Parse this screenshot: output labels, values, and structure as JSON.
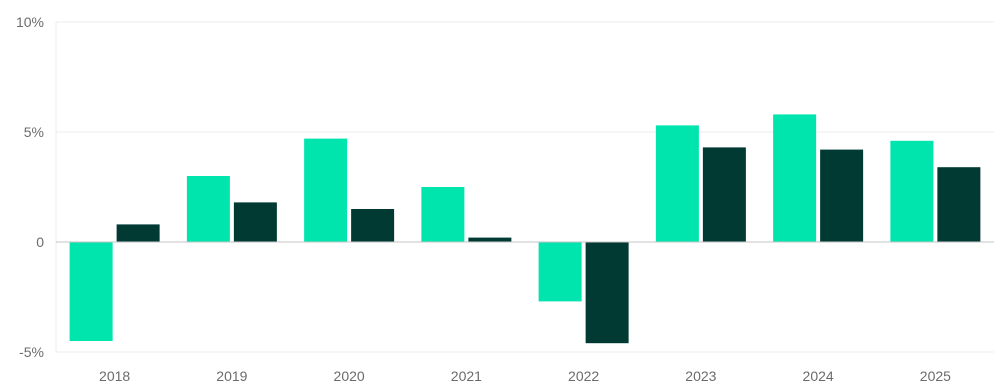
{
  "chart_data": {
    "type": "bar",
    "categories": [
      "2018",
      "2019",
      "2020",
      "2021",
      "2022",
      "2023",
      "2024",
      "2025"
    ],
    "series": [
      {
        "values": [
          -4.5,
          3.0,
          4.7,
          2.5,
          -2.7,
          5.3,
          5.8,
          4.6
        ],
        "color": "#00e5ad"
      },
      {
        "values": [
          0.8,
          1.8,
          1.5,
          0.2,
          -4.6,
          4.3,
          4.2,
          3.4
        ],
        "color": "#003a33"
      }
    ],
    "y_ticks": [
      {
        "value": 10,
        "label": "10%"
      },
      {
        "value": 5,
        "label": "5%"
      },
      {
        "value": 0,
        "label": "0"
      },
      {
        "value": -5,
        "label": "-5%"
      }
    ],
    "ylim": [
      -5,
      10
    ],
    "grid": true,
    "legend": "none"
  }
}
